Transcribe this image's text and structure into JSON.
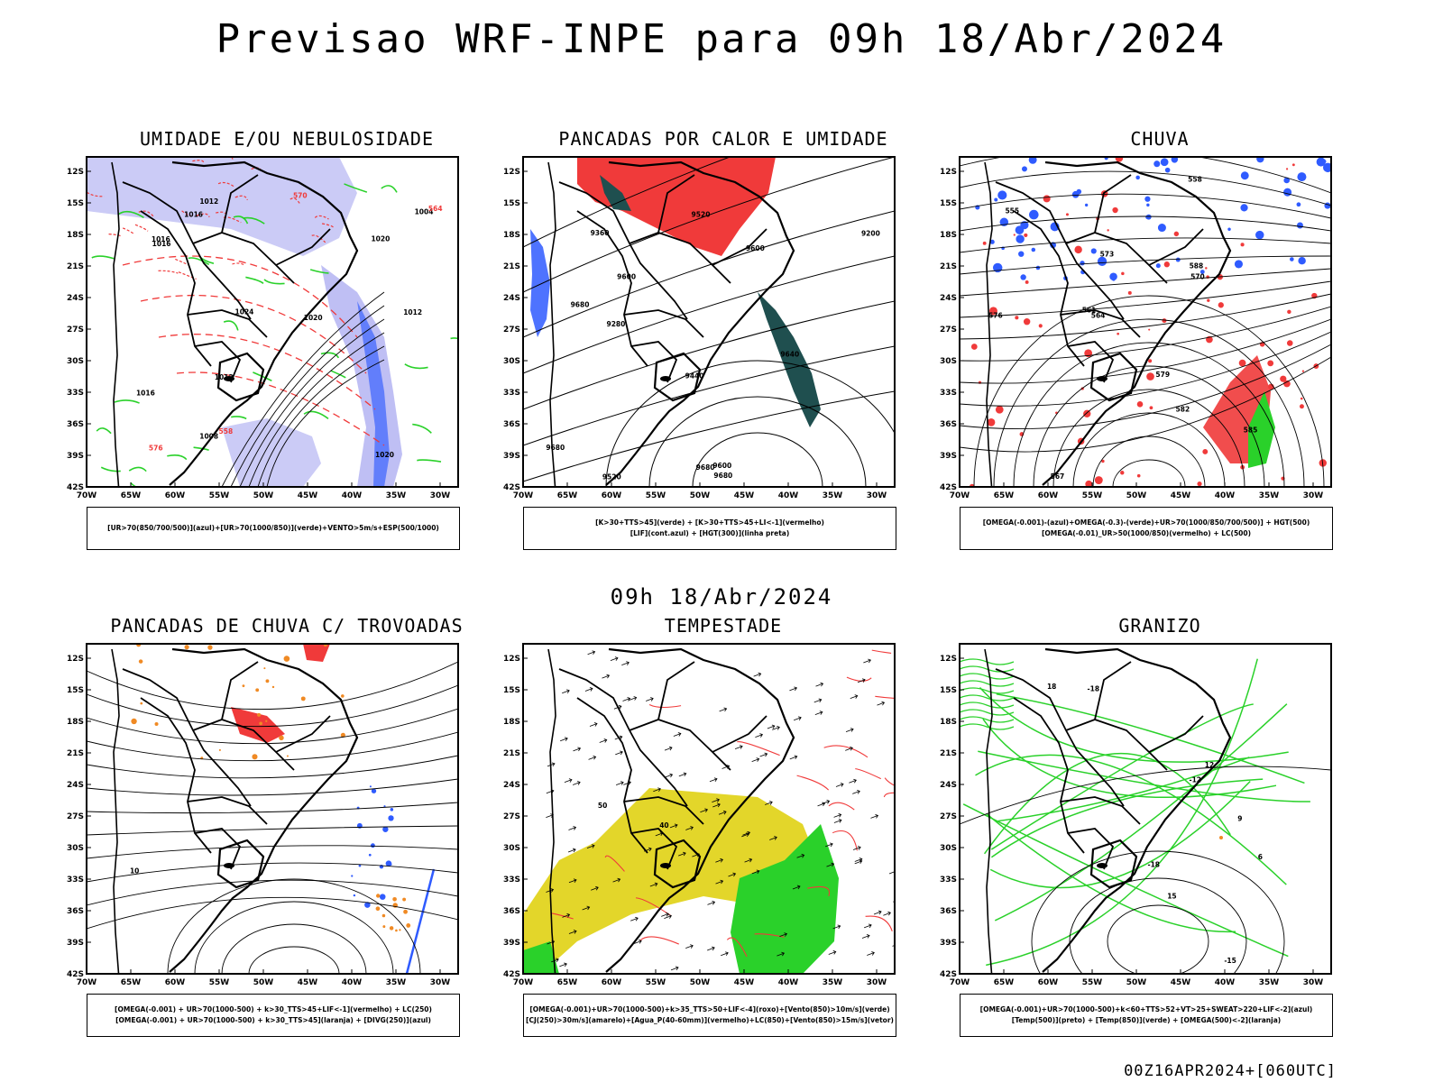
{
  "header": {
    "title": "Previsao WRF-INPE  para 09h 18/Abr/2024"
  },
  "mid_label": "09h 18/Abr/2024",
  "footer": "00Z16APR2024+[060UTC]",
  "axes": {
    "lat_labels": [
      "12S",
      "15S",
      "18S",
      "21S",
      "24S",
      "27S",
      "30S",
      "33S",
      "36S",
      "39S",
      "42S"
    ],
    "lon_labels": [
      "70W",
      "65W",
      "60W",
      "55W",
      "50W",
      "45W",
      "40W",
      "35W",
      "30W"
    ]
  },
  "colors": {
    "blue": "#2f5bff",
    "red": "#f03a3a",
    "green": "#2ad12a",
    "lavender": "#a9a9f0",
    "dark_teal": "#1f4f4f",
    "yellow": "#e3d62a",
    "orange": "#f08a24",
    "purple": "#6a5acd"
  },
  "panels": [
    {
      "title": "UMIDADE E/OU NEBULOSIDADE",
      "legend": [
        "[UR>70(850/700/500)](azul)+[UR>70(1000/850)](verde)+VENTO>5m/s+ESP(500/1000)"
      ],
      "contour_labels": [
        "1016",
        "1012",
        "1024",
        "1020",
        "1016",
        "1016",
        "1020",
        "1008",
        "1012",
        "1004",
        "1020",
        "1012",
        "1016",
        "564",
        "558",
        "570",
        "576"
      ]
    },
    {
      "title": "PANCADAS POR CALOR E UMIDADE",
      "legend": [
        "[K>30+TTS>45](verde) + [K>30+TTS>45+LI<-1](vermelho)",
        "[LIF](cont.azul) + [HGT(300)](linha preta)"
      ],
      "contour_labels": [
        "9680",
        "9680",
        "9680",
        "9600",
        "9640",
        "9600",
        "9600",
        "9520",
        "9440",
        "9360",
        "9280",
        "9200",
        "9520",
        "9680"
      ]
    },
    {
      "title": "CHUVA",
      "legend": [
        "[OMEGA(-0.001)-(azul)+OMEGA(-0.3)-(verde)+UR>70(1000/850/700/500)] + HGT(500)",
        "[OMEGA(-0.01)_UR>50(1000/850)(vermelho) + LC(500)"
      ],
      "contour_labels": [
        "585",
        "576",
        "570",
        "567",
        "564",
        "561",
        "558",
        "555",
        "579",
        "573",
        "582",
        "588"
      ]
    },
    {
      "title": "PANCADAS DE CHUVA C/ TROVOADAS",
      "legend": [
        "[OMEGA(-0.001) + UR>70(1000-500) + k>30_TTS>45+LIF<-1](vermelho) + LC(250)",
        "[OMEGA(-0.001) + UR>70(1000-500) + k>30_TTS>45](laranja) + [DIVG(250)](azul)"
      ],
      "contour_labels": [
        "10"
      ]
    },
    {
      "title": "TEMPESTADE",
      "legend": [
        "[OMEGA(-0.001)+UR>70(1000-500)+k>35_TTS>50+LIF<-4](roxo)+[Vento(850)>10m/s](verde)",
        "[CJ(250)>30m/s](amarelo)+[Agua_P(40-60mm)](vermelho)+LC(850)+[Vento(850)>15m/s](vetor)"
      ],
      "contour_labels": [
        "40",
        "50"
      ]
    },
    {
      "title": "GRANIZO",
      "legend": [
        "[OMEGA(-0.001)+UR>70(1000-500)+k<60+TTS>52+VT>25+SWEAT>220+LIF<-2](azul)",
        "[Temp(500)](preto) + [Temp(850)](verde) + [OMEGA(500)<-2](laranja)"
      ],
      "contour_labels": [
        "-12",
        "-15",
        "-18",
        "-18",
        "18",
        "15",
        "12",
        "9",
        "6"
      ]
    }
  ]
}
